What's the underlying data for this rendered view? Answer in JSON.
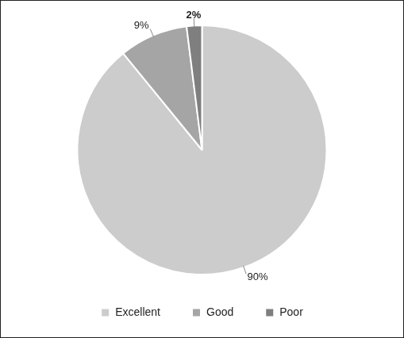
{
  "chart_data": {
    "type": "pie",
    "categories": [
      "Excellent",
      "Good",
      "Poor"
    ],
    "values": [
      90,
      9,
      2
    ],
    "value_labels": [
      "90%",
      "9%",
      "2%"
    ],
    "colors": [
      "#cccccc",
      "#a5a5a5",
      "#7f7f7f"
    ],
    "data_labels": true,
    "legend": "bottom"
  }
}
